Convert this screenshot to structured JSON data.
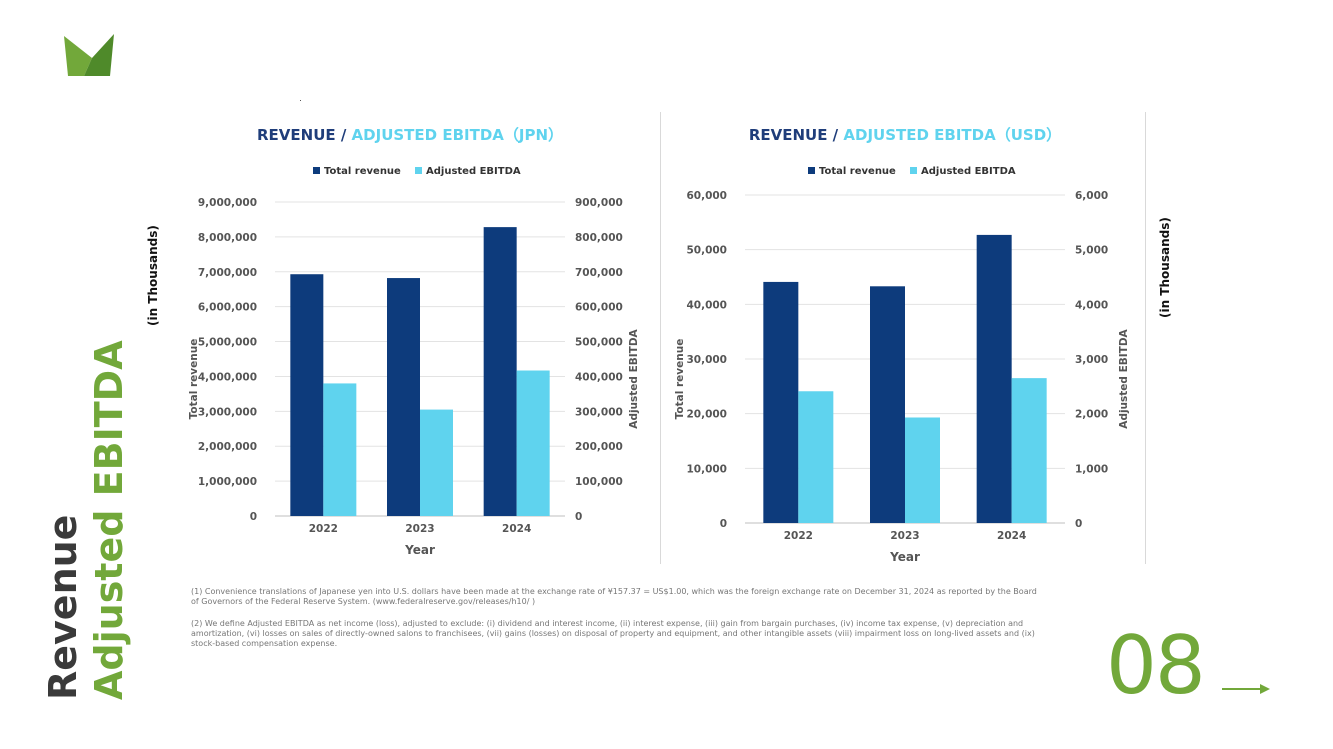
{
  "side_title": {
    "line1": "Revenue",
    "line2": "Adjusted EBITDA"
  },
  "unit_label": "(in Thousands)",
  "page_number": "08",
  "colors": {
    "brand_green": "#72a83a",
    "revenue_bar": "#0d3b7c",
    "ebitda_bar": "#5fd3ee",
    "title_blue": "#1f3d7a"
  },
  "footnotes": [
    "(1) Convenience translations of Japanese yen into U.S. dollars have been made at the exchange rate of ¥157.37 = US$1.00, which was the foreign exchange rate on December 31, 2024 as reported by the Board of Governors of the Federal Reserve System. (www.federalreserve.gov/releases/h10/ )",
    "(2) We define Adjusted EBITDA as net income (loss), adjusted to exclude: (i) dividend and interest income, (ii) interest expense, (iii) gain from bargain purchases, (iv) income tax expense, (v) depreciation and amortization, (vi) losses on sales of directly-owned salons to franchisees, (vii) gains (losses) on disposal of property and equipment, and other intangible assets (viii) impairment loss on long-lived assets and (ix) stock-based compensation expense."
  ],
  "chart_data": [
    {
      "type": "bar",
      "title_part1": "REVENUE / ",
      "title_part2": "ADJUSTED EBITDA（JPN）",
      "categories": [
        "2022",
        "2023",
        "2024"
      ],
      "xlabel": "Year",
      "ylabel": "Total revenue",
      "y2label": "Adjusted EBITDA",
      "ylim": [
        0,
        9000000
      ],
      "y2lim": [
        0,
        900000
      ],
      "yticks": [
        "0",
        "1,000,000",
        "2,000,000",
        "3,000,000",
        "4,000,000",
        "5,000,000",
        "6,000,000",
        "7,000,000",
        "8,000,000",
        "9,000,000"
      ],
      "y2ticks": [
        "0",
        "100,000",
        "200,000",
        "300,000",
        "400,000",
        "500,000",
        "600,000",
        "700,000",
        "800,000",
        "900,000"
      ],
      "grid": true,
      "legend_position": "top",
      "series": [
        {
          "name": "Total revenue",
          "axis": "left",
          "values": [
            6930000,
            6820000,
            8280000
          ]
        },
        {
          "name": "Adjusted EBITDA",
          "axis": "right",
          "values": [
            380000,
            305000,
            417000
          ]
        }
      ]
    },
    {
      "type": "bar",
      "title_part1": "REVENUE / ",
      "title_part2": "ADJUSTED EBITDA（USD）",
      "categories": [
        "2022",
        "2023",
        "2024"
      ],
      "xlabel": "Year",
      "ylabel": "Total revenue",
      "y2label": "Adjusted EBITDA",
      "ylim": [
        0,
        60000
      ],
      "y2lim": [
        0,
        6000
      ],
      "yticks": [
        "0",
        "10,000",
        "20,000",
        "30,000",
        "40,000",
        "50,000",
        "60,000"
      ],
      "y2ticks": [
        "0",
        "1,000",
        "2,000",
        "3,000",
        "4,000",
        "5,000",
        "6,000"
      ],
      "grid": true,
      "legend_position": "top",
      "series": [
        {
          "name": "Total revenue",
          "axis": "left",
          "values": [
            44100,
            43300,
            52700
          ]
        },
        {
          "name": "Adjusted EBITDA",
          "axis": "right",
          "values": [
            2410,
            1930,
            2650
          ]
        }
      ]
    }
  ]
}
